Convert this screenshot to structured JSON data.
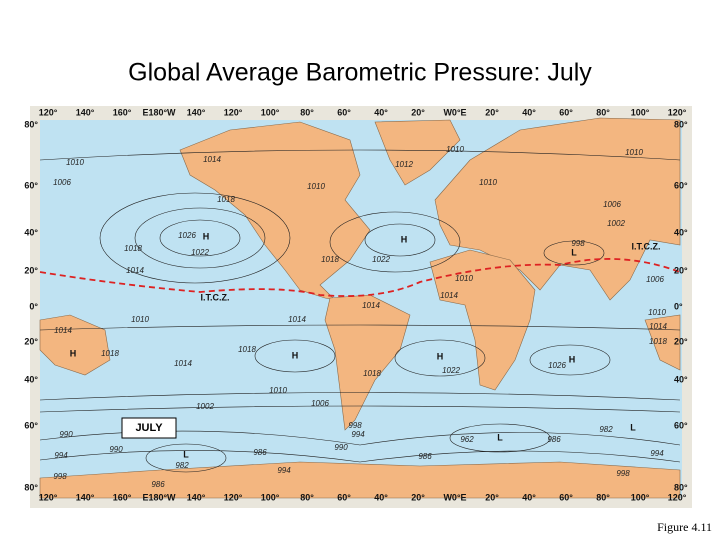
{
  "title": "Global Average Barometric Pressure: July",
  "figure_label": "Figure 4.11",
  "map": {
    "longitude_labels": [
      "120°",
      "140°",
      "160°",
      "E180°W",
      "140°",
      "120°",
      "100°",
      "80°",
      "60°",
      "40°",
      "20°",
      "W0°E",
      "20°",
      "40°",
      "60°",
      "80°",
      "100°",
      "120°"
    ],
    "latitude_labels": [
      "80°",
      "60°",
      "40°",
      "20°",
      "0°",
      "20°",
      "40°",
      "60°",
      "80°"
    ],
    "isobar_labels": [
      "1010",
      "1006",
      "1014",
      "1012",
      "1010",
      "1010",
      "1010",
      "1010",
      "1018",
      "1006",
      "1002",
      "998",
      "1026",
      "1018",
      "1022",
      "1018",
      "1022",
      "1014",
      "1010",
      "1014",
      "1006",
      "1014",
      "1010",
      "1014",
      "1014",
      "1010",
      "1014",
      "1018",
      "1018",
      "1018",
      "1014",
      "1026",
      "1018",
      "1022",
      "1010",
      "1006",
      "1002",
      "998",
      "994",
      "990",
      "990",
      "994",
      "990",
      "986",
      "982",
      "986",
      "962",
      "986",
      "982",
      "994",
      "998",
      "994",
      "998",
      "986"
    ],
    "pressure_centers": [
      "H",
      "H",
      "H",
      "H",
      "H",
      "H",
      "L",
      "L",
      "L",
      "L"
    ],
    "season_label": "JULY",
    "itcz_labels": [
      "I.T.C.Z.",
      "I.T.C.Z."
    ]
  }
}
